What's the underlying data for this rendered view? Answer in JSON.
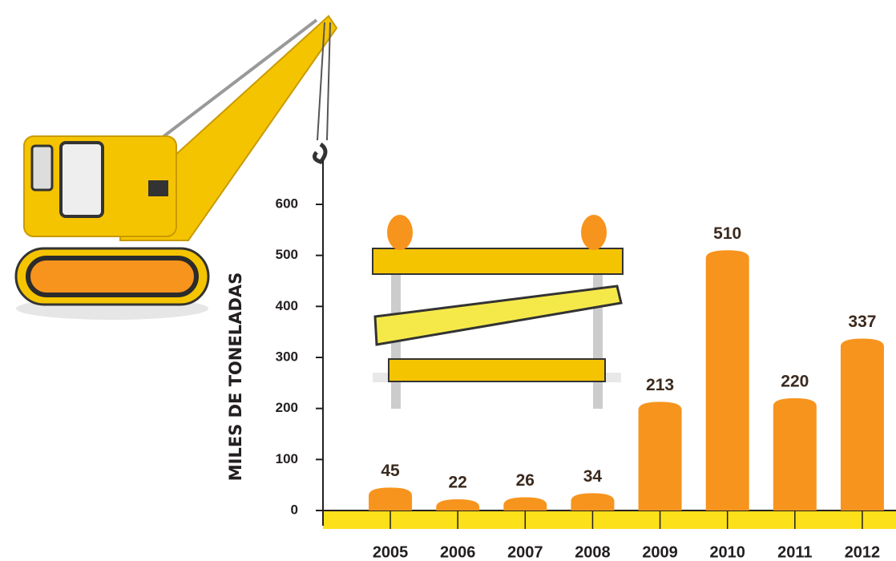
{
  "chart_data": {
    "type": "bar",
    "y_axis_label": "MILES DE TONELADAS",
    "categories": [
      "2005",
      "2006",
      "2007",
      "2008",
      "2009",
      "2010",
      "2011",
      "2012"
    ],
    "values": [
      45,
      22,
      26,
      34,
      213,
      510,
      220,
      337
    ],
    "color": "#f7941d",
    "ylim": [
      0,
      600
    ],
    "yticks": [
      0,
      100,
      200,
      300,
      400,
      500,
      600
    ]
  }
}
